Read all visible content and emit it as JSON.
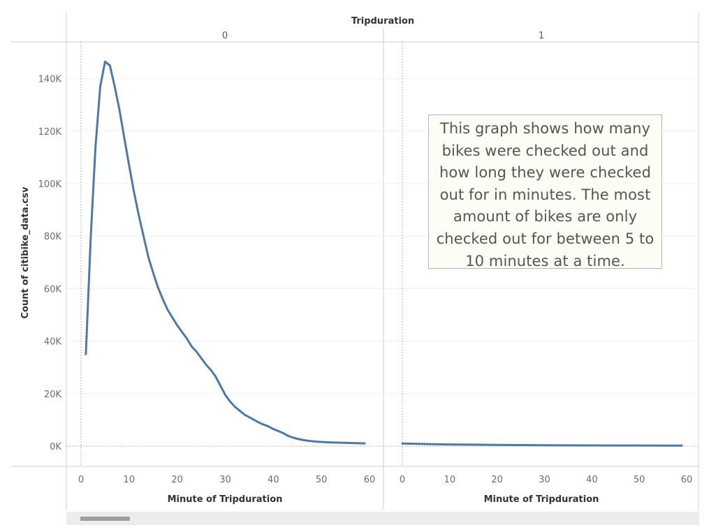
{
  "chart_data": {
    "type": "line",
    "header_title": "Tripduration",
    "ylabel": "Count of citibike_data.csv",
    "ylim": [
      0,
      150000
    ],
    "y_ticks": [
      0,
      20000,
      40000,
      60000,
      80000,
      100000,
      120000,
      140000
    ],
    "y_tick_labels": [
      "0K",
      "20K",
      "40K",
      "60K",
      "80K",
      "100K",
      "120K",
      "140K"
    ],
    "line_color": "#4e79a7",
    "grid": true,
    "panes": [
      {
        "label": "0",
        "xlabel": "Minute of Tripduration",
        "xlim": [
          -1,
          61
        ],
        "x_ticks": [
          0,
          10,
          20,
          30,
          40,
          50,
          60
        ],
        "x": [
          1,
          2,
          3,
          4,
          5,
          6,
          7,
          8,
          9,
          10,
          11,
          12,
          13,
          14,
          15,
          16,
          17,
          18,
          19,
          20,
          21,
          22,
          23,
          24,
          25,
          26,
          27,
          28,
          29,
          30,
          31,
          32,
          33,
          34,
          35,
          36,
          37,
          38,
          39,
          40,
          41,
          42,
          43,
          44,
          45,
          46,
          47,
          48,
          49,
          50,
          51,
          52,
          53,
          54,
          55,
          56,
          57,
          58,
          59
        ],
        "y": [
          35000,
          79000,
          114000,
          137000,
          146500,
          145000,
          137000,
          128000,
          117500,
          107000,
          97000,
          88000,
          80000,
          72000,
          66000,
          60500,
          56000,
          52000,
          49000,
          46000,
          43500,
          41000,
          38000,
          36000,
          33500,
          31000,
          29000,
          26500,
          23000,
          19500,
          17000,
          15000,
          13500,
          12000,
          11000,
          10000,
          9000,
          8200,
          7500,
          6500,
          5800,
          5000,
          4000,
          3300,
          2800,
          2400,
          2100,
          1900,
          1700,
          1600,
          1500,
          1400,
          1350,
          1300,
          1250,
          1200,
          1150,
          1100,
          1050
        ]
      },
      {
        "label": "1",
        "xlabel": "Minute of Tripduration",
        "xlim": [
          0,
          60
        ],
        "x_ticks": [
          0,
          10,
          20,
          30,
          40,
          50,
          60
        ],
        "x": [
          0,
          5,
          10,
          15,
          20,
          25,
          30,
          35,
          40,
          45,
          50,
          55,
          59
        ],
        "y": [
          1000,
          800,
          650,
          550,
          450,
          400,
          350,
          300,
          270,
          250,
          230,
          200,
          180
        ]
      }
    ]
  },
  "annotation": {
    "text": "This graph shows how many bikes were checked out and how long they were checked out for in minutes. The most amount of bikes are only checked out for between 5 to 10 minutes at a time."
  }
}
